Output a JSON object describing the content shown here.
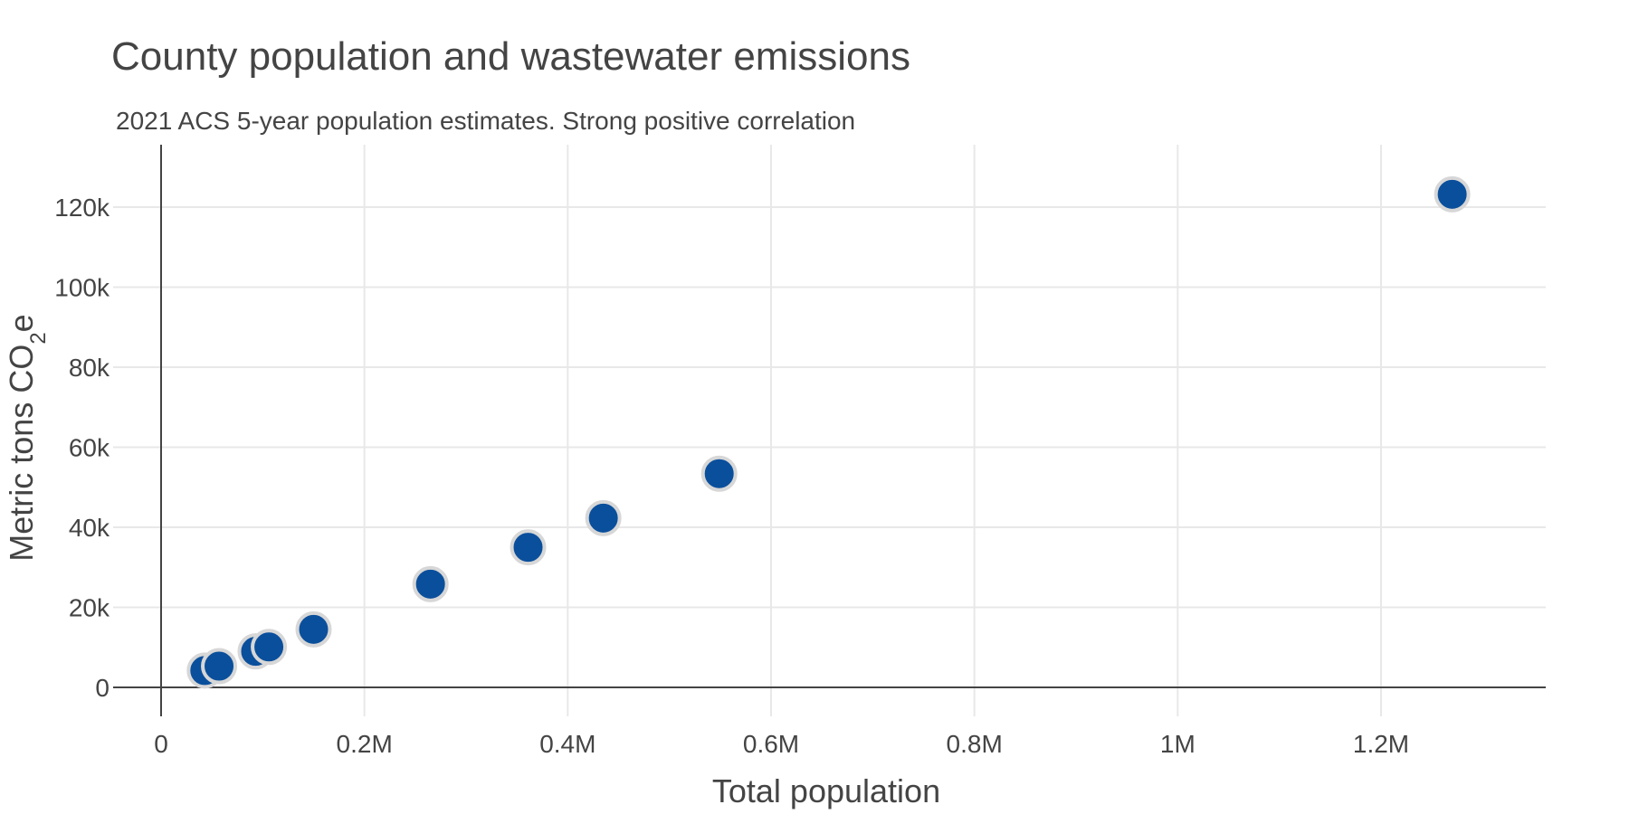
{
  "chart_data": {
    "type": "scatter",
    "title": "County population and wastewater emissions",
    "subtitle": "2021 ACS 5-year population estimates. Strong positive correlation",
    "xlabel": "Total population",
    "ylabel_main": "Metric tons CO",
    "ylabel_sub": "2",
    "ylabel_tail": "e",
    "xlim": [
      0,
      1360000
    ],
    "ylim": [
      -8000,
      135000
    ],
    "xticks": [
      0,
      200000,
      400000,
      600000,
      800000,
      1000000,
      1200000
    ],
    "xtick_labels": [
      "0",
      "0.2M",
      "0.4M",
      "0.6M",
      "0.8M",
      "1M",
      "1.2M"
    ],
    "yticks": [
      0,
      20000,
      40000,
      60000,
      80000,
      100000,
      120000
    ],
    "ytick_labels": [
      "0",
      "20k",
      "40k",
      "60k",
      "80k",
      "100k",
      "120k"
    ],
    "grid": true,
    "colors": {
      "marker_fill": "#0a4f9c",
      "marker_stroke": "#d7d7d7",
      "grid": "#e8e8e8",
      "axis": "#444444",
      "text": "#444444"
    },
    "points": [
      {
        "x": 43000,
        "y": 4200
      },
      {
        "x": 57000,
        "y": 5300
      },
      {
        "x": 93000,
        "y": 9000
      },
      {
        "x": 106000,
        "y": 10100
      },
      {
        "x": 150000,
        "y": 14500
      },
      {
        "x": 265000,
        "y": 25800
      },
      {
        "x": 361000,
        "y": 35000
      },
      {
        "x": 435000,
        "y": 42300
      },
      {
        "x": 549000,
        "y": 53400
      },
      {
        "x": 1270000,
        "y": 123200
      }
    ]
  }
}
